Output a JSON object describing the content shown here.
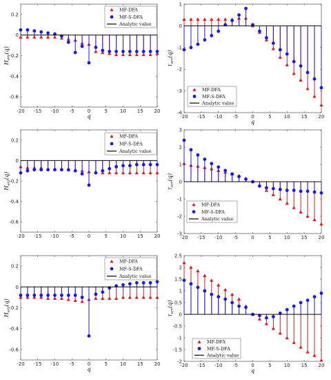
{
  "chart_data": [
    {
      "id": "p1",
      "type": "stem",
      "xlabel": "q",
      "ylabel": "H_err(q)",
      "xlim": [
        -20,
        20
      ],
      "ylim": [
        -0.7,
        0.3
      ],
      "xticks": [
        -20,
        -15,
        -10,
        -5,
        0,
        5,
        10,
        15,
        20
      ],
      "yticks": [
        0.2,
        0,
        -0.2,
        -0.4,
        -0.6
      ],
      "ytick_labels": [
        "0.2",
        "0",
        "-0.2",
        "-0.4",
        "-0.6"
      ],
      "legend": {
        "position": "top-right",
        "entries": [
          "MF-DFA",
          "MF-S-DFA",
          "Analytic value"
        ]
      },
      "x": [
        -20,
        -18,
        -16,
        -14,
        -12,
        -10,
        -8,
        -6,
        -4,
        -2,
        0,
        2,
        4,
        6,
        8,
        10,
        12,
        14,
        16,
        18,
        20
      ],
      "series": [
        {
          "name": "MF-DFA",
          "marker": "triangle",
          "color": "#e01818",
          "values": [
            -0.02,
            -0.02,
            -0.02,
            -0.02,
            -0.02,
            -0.02,
            -0.03,
            -0.04,
            -0.05,
            -0.08,
            -0.09,
            -0.16,
            -0.17,
            -0.18,
            -0.19,
            -0.19,
            -0.19,
            -0.19,
            -0.19,
            -0.19,
            -0.18
          ]
        },
        {
          "name": "MF-S-DFA",
          "marker": "circle",
          "color": "#1818e8",
          "values": [
            0.05,
            0.05,
            0.04,
            0.03,
            0.02,
            0.01,
            -0.01,
            -0.07,
            -0.17,
            -0.11,
            -0.27,
            -0.12,
            -0.15,
            -0.16,
            -0.16,
            -0.16,
            -0.16,
            -0.16,
            -0.16,
            -0.16,
            -0.16
          ]
        }
      ],
      "analytic": 0
    },
    {
      "id": "p2",
      "type": "stem",
      "xlabel": "q",
      "ylabel": "τ_err(q)",
      "xlim": [
        -20,
        20
      ],
      "ylim": [
        -4,
        1
      ],
      "xticks": [
        -20,
        -15,
        -10,
        -5,
        0,
        5,
        10,
        15,
        20
      ],
      "yticks": [
        1,
        0,
        -1,
        -2,
        -3,
        -4
      ],
      "ytick_labels": [
        "1",
        "0",
        "-1",
        "-2",
        "-3",
        "-4"
      ],
      "legend": {
        "position": "center-left",
        "entries": [
          "MF-DFA",
          "MF-S-DFA",
          "Analytic value"
        ]
      },
      "x": [
        -20,
        -18,
        -16,
        -14,
        -12,
        -10,
        -8,
        -6,
        -4,
        -2,
        0,
        2,
        4,
        6,
        8,
        10,
        12,
        14,
        16,
        18,
        20
      ],
      "series": [
        {
          "name": "MF-DFA",
          "marker": "triangle",
          "color": "#e01818",
          "values": [
            0.3,
            0.3,
            0.3,
            0.3,
            0.3,
            0.3,
            0.3,
            0.3,
            0.35,
            0.35,
            0.0,
            -0.3,
            -0.65,
            -1.05,
            -1.45,
            -1.8,
            -2.2,
            -2.5,
            -2.9,
            -3.25,
            -3.65
          ]
        },
        {
          "name": "MF-S-DFA",
          "marker": "circle",
          "color": "#1818e8",
          "values": [
            -1.1,
            -1.0,
            -0.85,
            -0.65,
            -0.45,
            -0.25,
            0.05,
            0.25,
            0.5,
            0.8,
            0.05,
            -0.25,
            -0.55,
            -0.8,
            -1.1,
            -1.3,
            -1.65,
            -1.85,
            -2.15,
            -2.45,
            -2.85
          ]
        }
      ],
      "analytic": 0
    },
    {
      "id": "p3",
      "type": "stem",
      "xlabel": "",
      "ylabel": "H_err(q)",
      "xlim": [
        -20,
        20
      ],
      "ylim": [
        -0.7,
        0.3
      ],
      "xticks": [
        -20,
        -15,
        -10,
        -5,
        0,
        5,
        10,
        15,
        20
      ],
      "yticks": [
        0.2,
        0,
        -0.2,
        -0.4,
        -0.6
      ],
      "ytick_labels": [
        "0.2",
        "0",
        "-0.2",
        "-0.4",
        "-0.6"
      ],
      "legend": {
        "position": "top-right",
        "entries": [
          "MF-DFA",
          "MF-S-DFA",
          "Analytic value"
        ]
      },
      "x": [
        -20,
        -18,
        -16,
        -14,
        -12,
        -10,
        -8,
        -6,
        -4,
        -2,
        0,
        2,
        4,
        6,
        8,
        10,
        12,
        14,
        16,
        18,
        20
      ],
      "series": [
        {
          "name": "MF-DFA",
          "marker": "triangle",
          "color": "#e01818",
          "values": [
            -0.06,
            -0.07,
            -0.07,
            -0.07,
            -0.08,
            -0.08,
            -0.08,
            -0.09,
            -0.09,
            -0.1,
            -0.11,
            -0.11,
            -0.12,
            -0.12,
            -0.12,
            -0.12,
            -0.12,
            -0.12,
            -0.12,
            -0.12,
            -0.12
          ]
        },
        {
          "name": "MF-S-DFA",
          "marker": "circle",
          "color": "#1818e8",
          "values": [
            -0.12,
            -0.1,
            -0.09,
            -0.09,
            -0.09,
            -0.09,
            -0.09,
            -0.09,
            -0.1,
            -0.13,
            -0.24,
            -0.12,
            -0.1,
            -0.08,
            -0.06,
            -0.05,
            -0.05,
            -0.04,
            -0.04,
            -0.04,
            -0.04
          ]
        }
      ],
      "analytic": 0
    },
    {
      "id": "p4",
      "type": "stem",
      "xlabel": "",
      "ylabel": "τ_err(q)",
      "xlim": [
        -20,
        20
      ],
      "ylim": [
        -3,
        3
      ],
      "xticks": [
        -20,
        -15,
        -10,
        -5,
        0,
        5,
        10,
        15,
        20
      ],
      "yticks": [
        3,
        2,
        1,
        0,
        -1,
        -2,
        -3
      ],
      "ytick_labels": [
        "3",
        "2",
        "1",
        "0",
        "-1",
        "-2",
        "-3"
      ],
      "legend": {
        "position": "center-left",
        "entries": [
          "MF-DFA",
          "MF-S-DFA",
          "Analytic value"
        ]
      },
      "x": [
        -20,
        -18,
        -16,
        -14,
        -12,
        -10,
        -8,
        -6,
        -4,
        -2,
        0,
        2,
        4,
        6,
        8,
        10,
        12,
        14,
        16,
        18,
        20
      ],
      "series": [
        {
          "name": "MF-DFA",
          "marker": "triangle",
          "color": "#e01818",
          "values": [
            1.05,
            0.95,
            0.9,
            0.82,
            0.75,
            0.65,
            0.55,
            0.45,
            0.35,
            0.2,
            0.0,
            -0.2,
            -0.5,
            -0.75,
            -1.0,
            -1.25,
            -1.5,
            -1.75,
            -2.0,
            -2.2,
            -2.45
          ]
        },
        {
          "name": "MF-S-DFA",
          "marker": "circle",
          "color": "#1818e8",
          "values": [
            2.4,
            1.85,
            1.55,
            1.3,
            1.05,
            0.85,
            0.65,
            0.45,
            0.3,
            0.15,
            0.0,
            -0.25,
            -0.35,
            -0.4,
            -0.45,
            -0.5,
            -0.5,
            -0.55,
            -0.55,
            -0.6,
            -0.65
          ]
        }
      ],
      "analytic": 0
    },
    {
      "id": "p5",
      "type": "stem",
      "xlabel": "q",
      "ylabel": "H_err(q)",
      "xlim": [
        -20,
        20
      ],
      "ylim": [
        -0.7,
        0.3
      ],
      "xticks": [
        -20,
        -15,
        -10,
        -5,
        0,
        5,
        10,
        15,
        20
      ],
      "yticks": [
        0.2,
        0,
        -0.2,
        -0.4,
        -0.6
      ],
      "ytick_labels": [
        "0.2",
        "0",
        "-0.2",
        "-0.4",
        "-0.6"
      ],
      "legend": {
        "position": "top-right",
        "entries": [
          "MF-DFA",
          "MF-S-DFA",
          "Analytic value"
        ]
      },
      "x": [
        -20,
        -18,
        -16,
        -14,
        -12,
        -10,
        -8,
        -6,
        -4,
        -2,
        0,
        2,
        4,
        6,
        8,
        10,
        12,
        14,
        16,
        18,
        20
      ],
      "series": [
        {
          "name": "MF-DFA",
          "marker": "triangle",
          "color": "#e01818",
          "values": [
            -0.1,
            -0.1,
            -0.1,
            -0.1,
            -0.11,
            -0.11,
            -0.11,
            -0.12,
            -0.13,
            -0.14,
            -0.12,
            -0.11,
            -0.11,
            -0.11,
            -0.11,
            -0.1,
            -0.1,
            -0.1,
            -0.1,
            -0.1,
            -0.1
          ]
        },
        {
          "name": "MF-S-DFA",
          "marker": "circle",
          "color": "#1818e8",
          "values": [
            -0.08,
            -0.08,
            -0.08,
            -0.08,
            -0.08,
            -0.08,
            -0.08,
            -0.08,
            -0.08,
            -0.1,
            -0.47,
            -0.07,
            -0.05,
            -0.01,
            0.01,
            0.02,
            0.03,
            0.04,
            0.04,
            0.04,
            0.05
          ]
        }
      ],
      "analytic": 0
    },
    {
      "id": "p6",
      "type": "stem",
      "xlabel": "q",
      "ylabel": "τ_err(q)",
      "xlim": [
        -20,
        20
      ],
      "ylim": [
        -2,
        2.5
      ],
      "xticks": [
        -20,
        -15,
        -10,
        -5,
        0,
        5,
        10,
        15,
        20
      ],
      "yticks": [
        2.5,
        2,
        1.5,
        1,
        0.5,
        0,
        -0.5,
        -1,
        -1.5,
        -2
      ],
      "ytick_labels": [
        "2.5",
        "2",
        "1.5",
        "1",
        "0.5",
        "0",
        "-0.5",
        "-1",
        "-1.5",
        "-2"
      ],
      "legend": {
        "position": "bottom-center",
        "entries": [
          "MF-DFA",
          "MF-S-DFA",
          "Analytic value"
        ]
      },
      "x": [
        -20,
        -18,
        -16,
        -14,
        -12,
        -10,
        -8,
        -6,
        -4,
        -2,
        0,
        2,
        4,
        6,
        8,
        10,
        12,
        14,
        16,
        18,
        20
      ],
      "series": [
        {
          "name": "MF-DFA",
          "marker": "triangle",
          "color": "#e01818",
          "values": [
            2.2,
            2.0,
            1.85,
            1.65,
            1.45,
            1.25,
            1.05,
            0.85,
            0.65,
            0.35,
            0.0,
            -0.2,
            -0.4,
            -0.6,
            -0.8,
            -1.0,
            -1.2,
            -1.4,
            -1.6,
            -1.75,
            -1.95
          ]
        },
        {
          "name": "MF-S-DFA",
          "marker": "circle",
          "color": "#1818e8",
          "values": [
            1.45,
            1.3,
            1.15,
            1.0,
            0.85,
            0.75,
            0.65,
            0.5,
            0.35,
            0.3,
            0.0,
            -0.05,
            -0.15,
            -0.1,
            0.05,
            0.2,
            0.35,
            0.5,
            0.6,
            0.75,
            0.9
          ]
        }
      ],
      "analytic": 0
    }
  ]
}
